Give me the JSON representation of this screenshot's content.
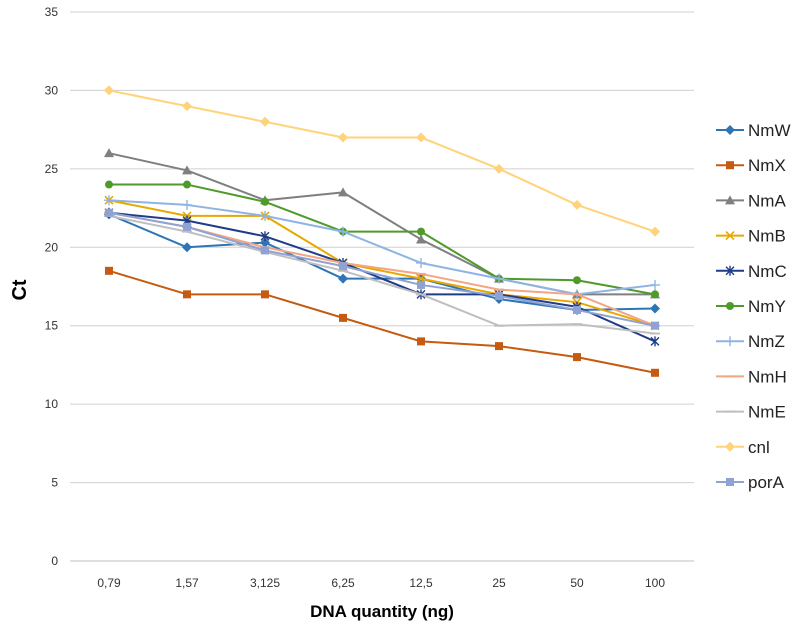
{
  "chart_data": {
    "type": "line",
    "title": "",
    "xlabel": "DNA  quantity  (ng)",
    "ylabel": "Ct",
    "categories": [
      "0,79",
      "1,57",
      "3,125",
      "6,25",
      "12,5",
      "25",
      "50",
      "100"
    ],
    "ylim": [
      0,
      35
    ],
    "yticks": [
      0,
      5,
      10,
      15,
      20,
      25,
      30,
      35
    ],
    "grid": "horizontal",
    "legend_position": "right",
    "series": [
      {
        "name": "NmW",
        "color": "#2E75B6",
        "marker": "diamond",
        "values": [
          22.1,
          20.0,
          20.3,
          18.0,
          18.0,
          16.7,
          16.0,
          16.1
        ]
      },
      {
        "name": "NmX",
        "color": "#C55A11",
        "marker": "square",
        "values": [
          18.5,
          17.0,
          17.0,
          15.5,
          14.0,
          13.7,
          13.0,
          12.0
        ]
      },
      {
        "name": "NmA",
        "color": "#7F7F7F",
        "marker": "triangle",
        "values": [
          26.0,
          24.9,
          23.0,
          23.5,
          20.5,
          18.0,
          17.0,
          17.0
        ]
      },
      {
        "name": "NmB",
        "color": "#E8A800",
        "marker": "x",
        "values": [
          23.0,
          22.0,
          22.0,
          19.0,
          18.0,
          17.0,
          16.5,
          15.0
        ]
      },
      {
        "name": "NmC",
        "color": "#1F3C88",
        "marker": "star",
        "values": [
          22.2,
          21.7,
          20.7,
          19.0,
          17.0,
          17.0,
          16.2,
          14.0
        ]
      },
      {
        "name": "NmY",
        "color": "#4E9A2A",
        "marker": "circle",
        "values": [
          24.0,
          24.0,
          22.9,
          21.0,
          21.0,
          18.0,
          17.9,
          17.0
        ]
      },
      {
        "name": "NmZ",
        "color": "#8EB4E3",
        "marker": "plus",
        "values": [
          23.0,
          22.7,
          22.0,
          21.0,
          19.0,
          18.0,
          17.0,
          17.6
        ]
      },
      {
        "name": "NmH",
        "color": "#F4A582",
        "marker": "dash",
        "values": [
          22.2,
          21.3,
          20.0,
          19.0,
          18.3,
          17.3,
          17.0,
          15.0
        ]
      },
      {
        "name": "NmE",
        "color": "#BFBFBF",
        "marker": "dash",
        "values": [
          22.0,
          21.0,
          19.7,
          18.5,
          17.0,
          15.0,
          15.1,
          14.5
        ]
      },
      {
        "name": "cnl",
        "color": "#FFD37A",
        "marker": "diamond",
        "values": [
          30.0,
          29.0,
          28.0,
          27.0,
          27.0,
          25.0,
          22.7,
          21.0
        ]
      },
      {
        "name": "porA",
        "color": "#8FA2D4",
        "marker": "square",
        "values": [
          22.2,
          21.3,
          19.8,
          18.8,
          17.6,
          16.9,
          16.0,
          15.0
        ]
      }
    ]
  }
}
